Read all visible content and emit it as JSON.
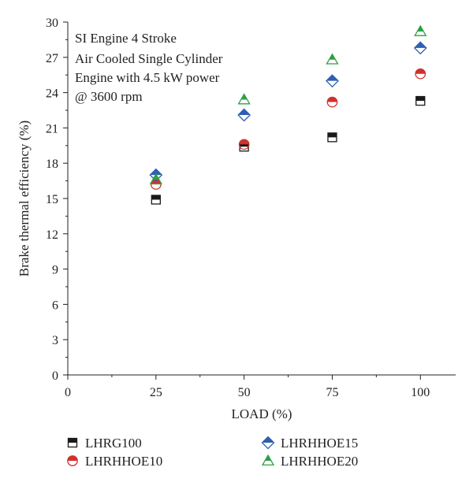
{
  "chart_data": {
    "type": "scatter",
    "xlabel": "LOAD (%)",
    "ylabel": "Brake thermal efficiency (%)",
    "xlim": [
      0,
      110
    ],
    "ylim": [
      0,
      30
    ],
    "x_ticks": [
      0,
      25,
      50,
      75,
      100
    ],
    "y_ticks": [
      0,
      3,
      6,
      9,
      12,
      15,
      18,
      21,
      24,
      27,
      30
    ],
    "grid": false,
    "annotation": [
      "SI Engine 4 Stroke",
      "Air Cooled Single Cylinder",
      "Engine with 4.5 kW power",
      "@ 3600 rpm"
    ],
    "legend_position": "bottom",
    "x": [
      25,
      50,
      75,
      100
    ],
    "series": [
      {
        "name": "LHRG100",
        "marker": "square-half",
        "color": "#1a1a1a",
        "values": [
          14.9,
          19.4,
          20.2,
          23.3
        ]
      },
      {
        "name": "LHRHHOE10",
        "marker": "circle-half",
        "color": "#d0312d",
        "values": [
          16.2,
          19.6,
          23.2,
          25.6
        ]
      },
      {
        "name": "LHRHHOE15",
        "marker": "diamond-half",
        "color": "#2e5fb0",
        "values": [
          17.0,
          22.1,
          25.0,
          27.8
        ]
      },
      {
        "name": "LHRHHOE20",
        "marker": "triangle-half",
        "color": "#2ea043",
        "values": [
          16.6,
          23.4,
          26.8,
          29.2
        ]
      }
    ]
  }
}
